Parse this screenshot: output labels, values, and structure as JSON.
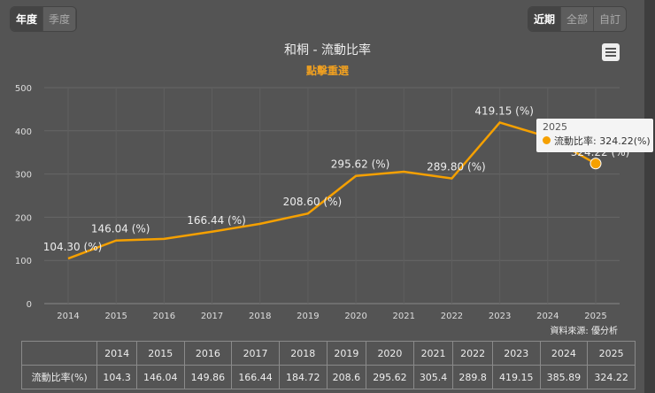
{
  "period_toggle": [
    "年度",
    "季度"
  ],
  "period_active": 0,
  "range_toggle": [
    "近期",
    "全部",
    "自訂"
  ],
  "range_active": 0,
  "menu_icon": "hamburger-icon",
  "source": "資料來源: 優分析",
  "tooltip": {
    "year": "2025",
    "label": "流動比率: 324.22(%)"
  },
  "table": {
    "row_label": "流動比率(%)"
  },
  "chart_data": {
    "type": "line",
    "title": "和桐 - 流動比率",
    "subtitle": "點擊重選",
    "categories": [
      "2014",
      "2015",
      "2016",
      "2017",
      "2018",
      "2019",
      "2020",
      "2021",
      "2022",
      "2023",
      "2024",
      "2025"
    ],
    "series": [
      {
        "name": "流動比率",
        "values": [
          104.3,
          146.04,
          149.86,
          166.44,
          184.72,
          208.6,
          295.62,
          305.4,
          289.8,
          419.15,
          385.89,
          324.22
        ],
        "color": "#f5a000"
      }
    ],
    "data_labels": {
      "2014": "104.30 (%)",
      "2015": "146.04 (%)",
      "2017": "166.44 (%)",
      "2019": "208.60 (%)",
      "2020": "295.62 (%)",
      "2022": "289.80 (%)",
      "2023": "419.15 (%)",
      "2025": "324.22 (%)"
    },
    "yticks": [
      0,
      100,
      200,
      300,
      400,
      500
    ],
    "ylim": [
      0,
      500
    ],
    "grid": true
  }
}
